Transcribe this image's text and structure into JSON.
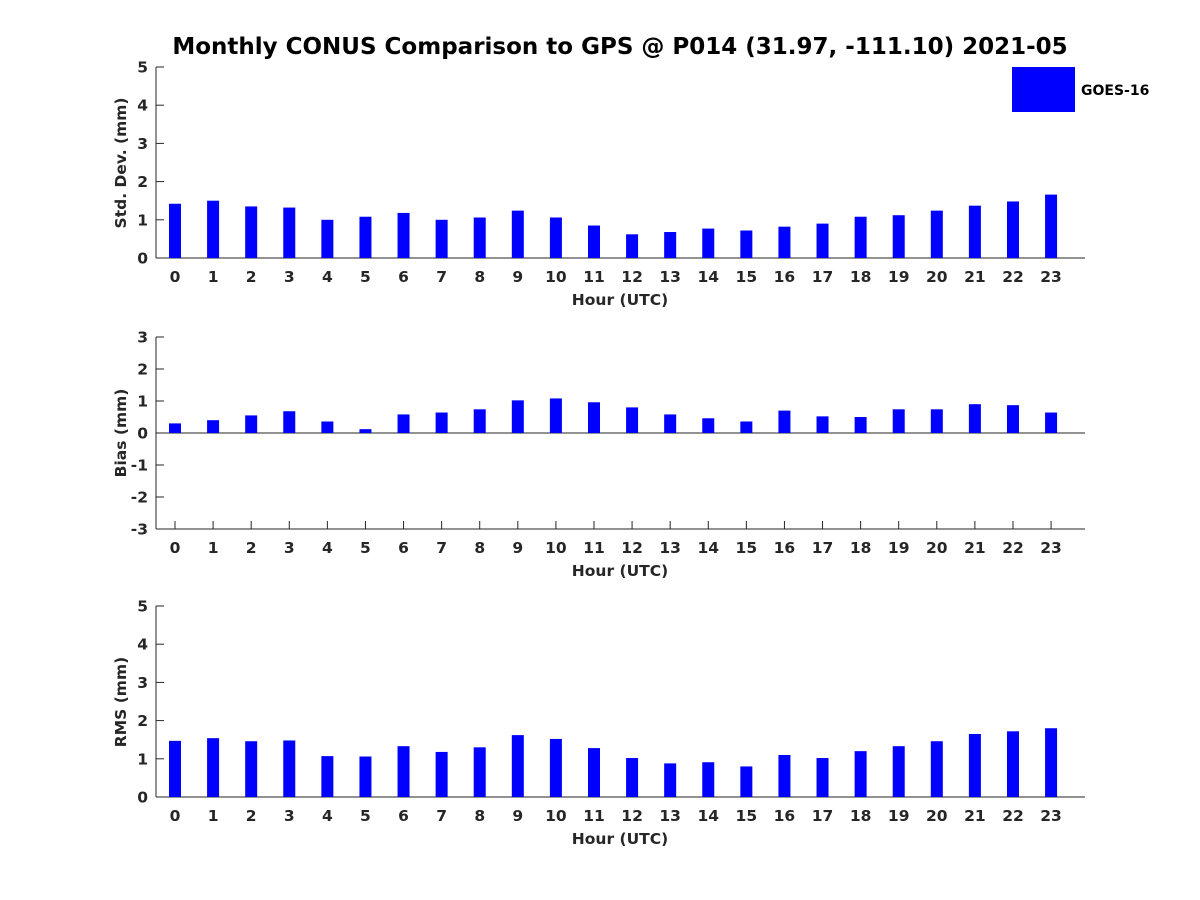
{
  "title": "Monthly CONUS Comparison to GPS @ P014 (31.97, -111.10) 2021-05",
  "colors": {
    "bar": "#0000ff",
    "axis": "#262626",
    "background": "#ffffff"
  },
  "legend": {
    "label": "GOES-16",
    "placement": "top-right"
  },
  "chart_data": [
    {
      "type": "bar",
      "ylabel": "Std. Dev. (mm)",
      "xlabel": "Hour (UTC)",
      "ylim": [
        0,
        5
      ],
      "yticks": [
        0,
        1,
        2,
        3,
        4,
        5
      ],
      "categories": [
        "0",
        "1",
        "2",
        "3",
        "4",
        "5",
        "6",
        "7",
        "8",
        "9",
        "10",
        "11",
        "12",
        "13",
        "14",
        "15",
        "16",
        "17",
        "18",
        "19",
        "20",
        "21",
        "22",
        "23"
      ],
      "series": [
        {
          "name": "GOES-16",
          "values": [
            1.42,
            1.5,
            1.35,
            1.32,
            1.0,
            1.08,
            1.18,
            1.0,
            1.06,
            1.24,
            1.06,
            0.85,
            0.62,
            0.68,
            0.77,
            0.72,
            0.82,
            0.9,
            1.08,
            1.12,
            1.24,
            1.37,
            1.48,
            1.66
          ]
        }
      ]
    },
    {
      "type": "bar",
      "ylabel": "Bias (mm)",
      "xlabel": "Hour (UTC)",
      "ylim": [
        -3,
        3
      ],
      "yticks": [
        -3,
        -2,
        -1,
        0,
        1,
        2,
        3
      ],
      "categories": [
        "0",
        "1",
        "2",
        "3",
        "4",
        "5",
        "6",
        "7",
        "8",
        "9",
        "10",
        "11",
        "12",
        "13",
        "14",
        "15",
        "16",
        "17",
        "18",
        "19",
        "20",
        "21",
        "22",
        "23"
      ],
      "series": [
        {
          "name": "GOES-16",
          "values": [
            0.3,
            0.4,
            0.55,
            0.68,
            0.36,
            0.12,
            0.58,
            0.64,
            0.74,
            1.02,
            1.08,
            0.96,
            0.8,
            0.58,
            0.46,
            0.36,
            0.7,
            0.52,
            0.5,
            0.74,
            0.74,
            0.9,
            0.87,
            0.64
          ]
        }
      ]
    },
    {
      "type": "bar",
      "ylabel": "RMS (mm)",
      "xlabel": "Hour (UTC)",
      "ylim": [
        0,
        5
      ],
      "yticks": [
        0,
        1,
        2,
        3,
        4,
        5
      ],
      "categories": [
        "0",
        "1",
        "2",
        "3",
        "4",
        "5",
        "6",
        "7",
        "8",
        "9",
        "10",
        "11",
        "12",
        "13",
        "14",
        "15",
        "16",
        "17",
        "18",
        "19",
        "20",
        "21",
        "22",
        "23"
      ],
      "series": [
        {
          "name": "GOES-16",
          "values": [
            1.47,
            1.54,
            1.46,
            1.48,
            1.07,
            1.06,
            1.33,
            1.18,
            1.3,
            1.62,
            1.52,
            1.28,
            1.02,
            0.88,
            0.91,
            0.8,
            1.1,
            1.02,
            1.2,
            1.33,
            1.46,
            1.65,
            1.72,
            1.8
          ]
        }
      ]
    }
  ]
}
